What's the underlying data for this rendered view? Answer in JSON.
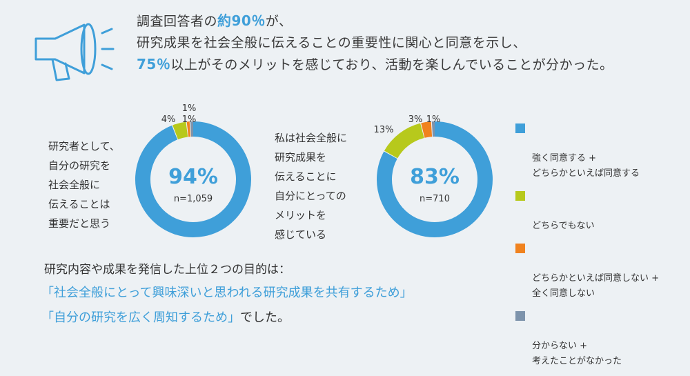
{
  "headline": {
    "l1_pre": "調査回答者の",
    "l1_hl": "約90％",
    "l1_post": "が、",
    "l2": "研究成果を社会全般に伝えることの重要性に関心と同意を示し、",
    "l3_hl": "75％",
    "l3_post": "以上がそのメリットを感じており、活動を楽しんでいることが分かった。"
  },
  "icon": "megaphone-icon",
  "colors": {
    "blue": "#3f9fd9",
    "green": "#b7c91c",
    "orange": "#f0821e",
    "gray": "#7d93ab"
  },
  "chart_data": [
    {
      "type": "pie",
      "question": "研究者として、\n自分の研究を\n社会全般に\n伝えることは\n重要だと思う",
      "center_value": "94%",
      "center_n": "n=1,059",
      "values": [
        94,
        4,
        1,
        1
      ],
      "labels": [
        "",
        "4%",
        "1%",
        "1%"
      ]
    },
    {
      "type": "pie",
      "question": "私は社会全般に\n研究成果を\n伝えることに\n自分にとっての\nメリットを\n感じている",
      "center_value": "83%",
      "center_n": "n=710",
      "values": [
        83,
        13,
        3,
        1
      ],
      "labels": [
        "",
        "13%",
        "3%",
        "1%"
      ]
    }
  ],
  "legend": [
    "強く同意する +\nどちらかといえば同意する",
    "どちらでもない",
    "どちらかといえば同意しない +\n全く同意しない",
    "分からない +\n考えたことがなかった"
  ],
  "bottom": {
    "intro": "研究内容や成果を発信した上位２つの目的は：",
    "quote1": "「社会全般にとって興味深いと思われる研究成果を共有するため」",
    "quote2": "「自分の研究を広く周知するため」",
    "quote2_post": "でした。"
  }
}
